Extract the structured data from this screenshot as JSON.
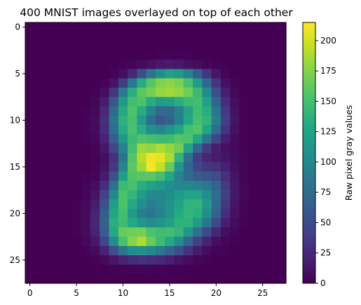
{
  "chart_data": {
    "type": "heatmap",
    "title": "400 MNIST images overlayed on top of each other",
    "colorbar_label": "Raw pixel gray values",
    "colormap": "viridis",
    "x_ticks": [
      0,
      5,
      10,
      15,
      20,
      25
    ],
    "y_ticks": [
      0,
      5,
      10,
      15,
      20,
      25
    ],
    "colorbar_ticks": [
      0,
      25,
      50,
      75,
      100,
      125,
      150,
      175,
      200
    ],
    "xlim": [
      -0.5,
      27.5
    ],
    "ylim": [
      27.5,
      -0.5
    ],
    "vmin": 0,
    "vmax": 215,
    "grid": false,
    "shape": [
      28,
      28
    ],
    "rows": [
      [
        0,
        0,
        0,
        0,
        0,
        0,
        0,
        0,
        0,
        0,
        0,
        0,
        0,
        0,
        0,
        0,
        0,
        0,
        0,
        0,
        0,
        0,
        0,
        0,
        0,
        0,
        0,
        0
      ],
      [
        0,
        0,
        0,
        0,
        0,
        0,
        0,
        0,
        0,
        0,
        0,
        0,
        0,
        0,
        0,
        0,
        0,
        0,
        0,
        0,
        0,
        0,
        0,
        0,
        0,
        0,
        0,
        0
      ],
      [
        0,
        0,
        0,
        0,
        0,
        0,
        0,
        0,
        0,
        0,
        0,
        0,
        0,
        0,
        0,
        0,
        0,
        0,
        0,
        0,
        0,
        0,
        0,
        0,
        0,
        0,
        0,
        0
      ],
      [
        0,
        0,
        0,
        0,
        0,
        0,
        0,
        0,
        0,
        0,
        0,
        0,
        0,
        0,
        1,
        1,
        1,
        1,
        0,
        0,
        0,
        0,
        0,
        0,
        0,
        0,
        0,
        0
      ],
      [
        0,
        0,
        0,
        0,
        0,
        0,
        0,
        0,
        0,
        0,
        1,
        3,
        6,
        10,
        14,
        16,
        14,
        10,
        6,
        3,
        1,
        0,
        0,
        0,
        0,
        0,
        0,
        0
      ],
      [
        0,
        0,
        0,
        0,
        0,
        0,
        0,
        0,
        0,
        2,
        8,
        25,
        52,
        84,
        104,
        119,
        114,
        94,
        63,
        33,
        12,
        3,
        0,
        0,
        0,
        0,
        0,
        0
      ],
      [
        0,
        0,
        0,
        0,
        0,
        0,
        0,
        0,
        2,
        11,
        38,
        85,
        132,
        158,
        174,
        177,
        172,
        152,
        118,
        72,
        32,
        9,
        2,
        0,
        0,
        0,
        0,
        0
      ],
      [
        0,
        0,
        0,
        0,
        0,
        0,
        0,
        1,
        8,
        33,
        87,
        134,
        160,
        170,
        180,
        184,
        180,
        168,
        145,
        102,
        52,
        18,
        4,
        0,
        0,
        0,
        0,
        0
      ],
      [
        0,
        0,
        0,
        0,
        0,
        0,
        0,
        3,
        17,
        57,
        115,
        150,
        154,
        132,
        118,
        121,
        133,
        146,
        150,
        121,
        70,
        28,
        8,
        1,
        0,
        0,
        0,
        0
      ],
      [
        0,
        0,
        0,
        0,
        0,
        0,
        1,
        4,
        25,
        74,
        130,
        154,
        132,
        97,
        74,
        74,
        94,
        124,
        148,
        133,
        84,
        36,
        10,
        1,
        0,
        0,
        0,
        0
      ],
      [
        0,
        0,
        0,
        0,
        0,
        0,
        1,
        6,
        29,
        83,
        137,
        151,
        117,
        76,
        59,
        68,
        92,
        127,
        151,
        139,
        92,
        40,
        11,
        1,
        0,
        0,
        0,
        0
      ],
      [
        0,
        0,
        0,
        0,
        0,
        0,
        1,
        6,
        27,
        77,
        131,
        152,
        133,
        103,
        98,
        110,
        126,
        150,
        156,
        126,
        76,
        33,
        9,
        1,
        0,
        0,
        0,
        0
      ],
      [
        0,
        0,
        0,
        0,
        0,
        0,
        1,
        4,
        20,
        63,
        114,
        146,
        154,
        151,
        145,
        147,
        157,
        154,
        128,
        84,
        44,
        18,
        6,
        1,
        0,
        0,
        0,
        0
      ],
      [
        0,
        0,
        0,
        0,
        0,
        0,
        0,
        2,
        13,
        45,
        95,
        150,
        183,
        180,
        188,
        179,
        169,
        124,
        71,
        37,
        18,
        9,
        4,
        1,
        0,
        0,
        0,
        0
      ],
      [
        0,
        0,
        0,
        0,
        0,
        0,
        0,
        1,
        8,
        30,
        84,
        157,
        192,
        210,
        208,
        188,
        139,
        78,
        38,
        23,
        17,
        12,
        6,
        2,
        0,
        0,
        0,
        0
      ],
      [
        0,
        0,
        0,
        0,
        0,
        0,
        0,
        2,
        10,
        35,
        97,
        160,
        184,
        213,
        196,
        164,
        111,
        70,
        44,
        34,
        30,
        19,
        8,
        2,
        0,
        0,
        0,
        0
      ],
      [
        0,
        0,
        0,
        0,
        0,
        0,
        1,
        3,
        16,
        53,
        120,
        156,
        159,
        160,
        150,
        128,
        95,
        74,
        61,
        57,
        49,
        29,
        11,
        2,
        0,
        0,
        0,
        0
      ],
      [
        0,
        0,
        0,
        0,
        0,
        0,
        2,
        7,
        28,
        78,
        145,
        152,
        135,
        122,
        115,
        107,
        98,
        98,
        93,
        85,
        67,
        36,
        13,
        3,
        0,
        0,
        0,
        0
      ],
      [
        0,
        0,
        0,
        0,
        0,
        0,
        3,
        12,
        42,
        101,
        153,
        141,
        118,
        102,
        100,
        103,
        116,
        123,
        123,
        104,
        76,
        40,
        14,
        3,
        0,
        0,
        0,
        0
      ],
      [
        0,
        0,
        0,
        0,
        0,
        1,
        4,
        17,
        55,
        119,
        154,
        130,
        104,
        92,
        98,
        108,
        124,
        138,
        140,
        115,
        75,
        35,
        12,
        2,
        0,
        0,
        0,
        0
      ],
      [
        0,
        0,
        0,
        0,
        0,
        1,
        6,
        21,
        63,
        127,
        150,
        116,
        91,
        84,
        95,
        110,
        130,
        140,
        136,
        107,
        66,
        28,
        9,
        2,
        0,
        0,
        0,
        0
      ],
      [
        0,
        0,
        0,
        0,
        0,
        1,
        6,
        23,
        68,
        134,
        148,
        129,
        114,
        103,
        110,
        121,
        137,
        137,
        116,
        84,
        48,
        18,
        6,
        1,
        0,
        0,
        0,
        0
      ],
      [
        0,
        0,
        0,
        0,
        0,
        1,
        6,
        21,
        63,
        130,
        164,
        168,
        170,
        153,
        148,
        149,
        141,
        113,
        79,
        48,
        23,
        8,
        3,
        0,
        0,
        0,
        0,
        0
      ],
      [
        0,
        0,
        0,
        0,
        0,
        0,
        4,
        14,
        45,
        103,
        152,
        176,
        189,
        165,
        147,
        129,
        103,
        69,
        40,
        20,
        8,
        3,
        1,
        0,
        0,
        0,
        0,
        0
      ],
      [
        0,
        0,
        0,
        0,
        0,
        0,
        1,
        6,
        20,
        51,
        84,
        103,
        107,
        98,
        86,
        70,
        51,
        31,
        16,
        7,
        2,
        1,
        0,
        0,
        0,
        0,
        0,
        0
      ],
      [
        0,
        0,
        0,
        0,
        0,
        0,
        0,
        1,
        4,
        12,
        21,
        27,
        30,
        28,
        25,
        19,
        12,
        7,
        3,
        1,
        0,
        0,
        0,
        0,
        0,
        0,
        0,
        0
      ],
      [
        0,
        0,
        0,
        0,
        0,
        0,
        0,
        0,
        0,
        1,
        1,
        2,
        2,
        2,
        2,
        1,
        1,
        0,
        0,
        0,
        0,
        0,
        0,
        0,
        0,
        0,
        0,
        0
      ],
      [
        0,
        0,
        0,
        0,
        0,
        0,
        0,
        0,
        0,
        0,
        0,
        0,
        0,
        0,
        0,
        0,
        0,
        0,
        0,
        0,
        0,
        0,
        0,
        0,
        0,
        0,
        0,
        0
      ]
    ]
  }
}
